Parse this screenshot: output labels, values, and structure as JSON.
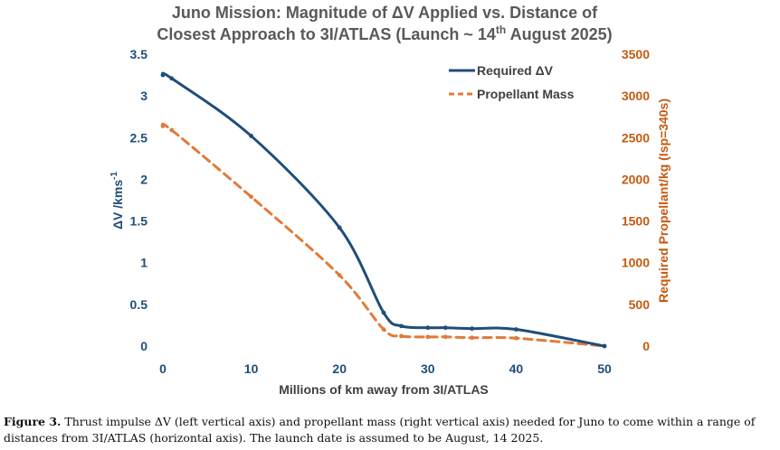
{
  "chart_data": {
    "type": "line",
    "title_lines": [
      "Juno Mission: Magnitude of ΔV Applied vs. Distance of",
      "Closest Approach to 3I/ATLAS (Launch ~ 14"
    ],
    "title_superscript": "th",
    "title_tail": " August 2025)",
    "xlabel": "Millions of km away from 3I/ATLAS",
    "ylabel_left": "ΔV /kms",
    "ylabel_left_superscript": "-1",
    "ylabel_right": "Required Propellant/kg (Isp=340s)",
    "xlim": [
      0,
      50
    ],
    "ylim_left": [
      0,
      3.5
    ],
    "ylim_right": [
      0,
      3500
    ],
    "x_ticks": [
      "0",
      "10",
      "20",
      "30",
      "40",
      "50"
    ],
    "y_left_ticks": [
      "0",
      "0.5",
      "1",
      "1.5",
      "2",
      "2.5",
      "3",
      "3.5"
    ],
    "y_right_ticks": [
      "0",
      "500",
      "1000",
      "1500",
      "2000",
      "2500",
      "3000",
      "3500"
    ],
    "grid": false,
    "legend_position": "top-right",
    "series": [
      {
        "name": "Required ΔV",
        "axis": "left",
        "color": "#1f4e79",
        "style": "solid",
        "x": [
          0,
          1,
          10,
          20,
          25,
          27,
          30,
          32,
          35,
          40,
          50
        ],
        "y": [
          3.25,
          3.21,
          2.52,
          1.42,
          0.4,
          0.24,
          0.22,
          0.22,
          0.21,
          0.2,
          0.0
        ]
      },
      {
        "name": "Propellant Mass",
        "axis": "right",
        "color": "#e07b39",
        "style": "dashed",
        "x": [
          0,
          1,
          10,
          20,
          25,
          27,
          30,
          32,
          35,
          40,
          50
        ],
        "y": [
          2640,
          2590,
          1790,
          850,
          200,
          120,
          110,
          110,
          100,
          95,
          0
        ]
      }
    ]
  },
  "caption": {
    "label": "Figure 3.",
    "text": " Thrust impulse ΔV (left vertical axis) and propellant mass (right vertical axis) needed for Juno to come within a range of distances from 3I/ATLAS (horizontal axis). The launch date is assumed to be August, 14 2025."
  }
}
